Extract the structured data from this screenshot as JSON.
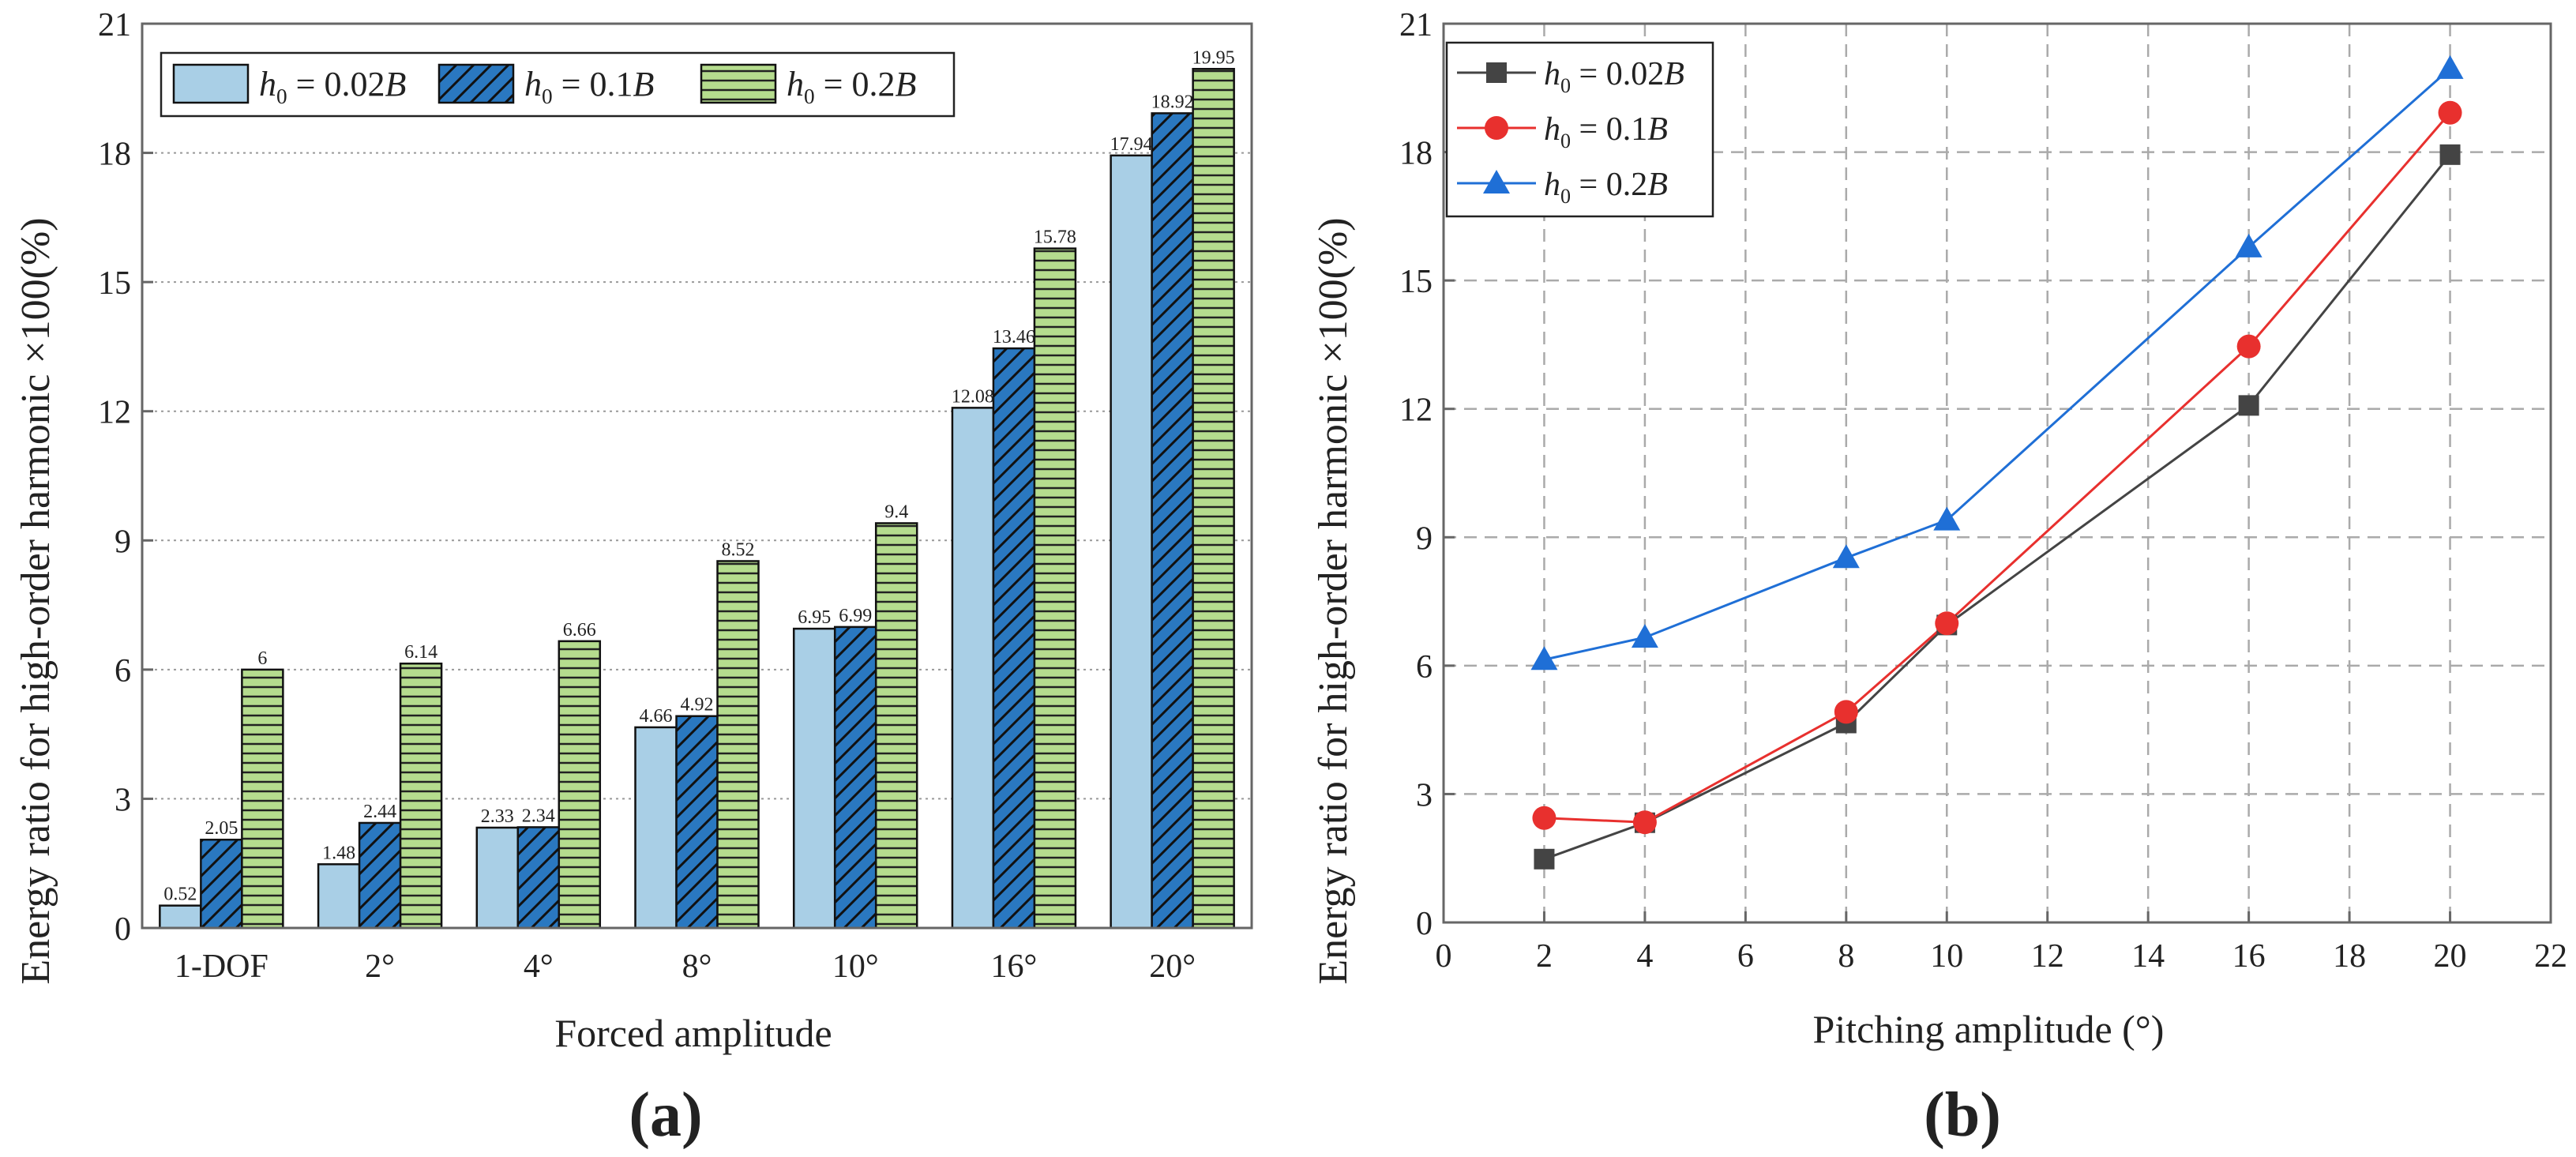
{
  "chart_data": [
    {
      "type": "bar",
      "panel_label": "(a)",
      "title": "",
      "xlabel": "Forced amplitude",
      "ylabel": "Energy ratio for high-order harmonic ×100(%)",
      "ylim": [
        0,
        21
      ],
      "yticks": [
        "0",
        "3",
        "6",
        "9",
        "12",
        "15",
        "18",
        "21"
      ],
      "categories": [
        "1-DOF",
        "2°",
        "4°",
        "8°",
        "10°",
        "16°",
        "20°"
      ],
      "grid": "horizontal dotted",
      "legend_position": "top-left",
      "series": [
        {
          "name": "h0 = 0.02B",
          "legend_main": "h",
          "legend_sub": "0",
          "legend_rest": " = 0.02",
          "legend_italic": "B",
          "color": "#a9cfe6",
          "pattern": "solid",
          "values": [
            0.52,
            1.48,
            2.33,
            4.66,
            6.95,
            12.08,
            17.94
          ],
          "labels": [
            "0.52",
            "1.48",
            "2.33",
            "4.66",
            "6.95",
            "12.08",
            "17.94"
          ]
        },
        {
          "name": "h0 = 0.1B",
          "legend_main": "h",
          "legend_sub": "0",
          "legend_rest": " = 0.1",
          "legend_italic": "B",
          "color": "#2a78c0",
          "pattern": "hatch",
          "values": [
            2.05,
            2.44,
            2.34,
            4.92,
            6.99,
            13.46,
            18.92
          ],
          "labels": [
            "2.05",
            "2.44",
            "2.34",
            "4.92",
            "6.99",
            "13.46",
            "18.92"
          ]
        },
        {
          "name": "h0 = 0.2B",
          "legend_main": "h",
          "legend_sub": "0",
          "legend_rest": " = 0.2",
          "legend_italic": "B",
          "color": "#b5dc8e",
          "pattern": "stripes",
          "values": [
            6,
            6.14,
            6.66,
            8.52,
            9.4,
            15.78,
            19.95
          ],
          "labels": [
            "6",
            "6.14",
            "6.66",
            "8.52",
            "9.4",
            "15.78",
            "19.95"
          ]
        }
      ]
    },
    {
      "type": "line",
      "panel_label": "(b)",
      "title": "",
      "xlabel": "Pitching amplitude (°)",
      "ylabel": "Energy ratio for high-order harmonic ×100(%)",
      "xlim": [
        0,
        22
      ],
      "ylim": [
        0,
        21
      ],
      "xticks": [
        "0",
        "2",
        "4",
        "6",
        "8",
        "10",
        "12",
        "14",
        "16",
        "18",
        "20",
        "22"
      ],
      "yticks": [
        "0",
        "3",
        "6",
        "9",
        "12",
        "15",
        "18",
        "21"
      ],
      "grid": "dashed",
      "legend_position": "top-left",
      "x": [
        2,
        4,
        8,
        10,
        16,
        20
      ],
      "series": [
        {
          "name": "h0 = 0.02B",
          "legend_main": "h",
          "legend_sub": "0",
          "legend_rest": " = 0.02",
          "legend_italic": "B",
          "color": "#444444",
          "marker": "square",
          "values": [
            1.48,
            2.33,
            4.66,
            6.95,
            12.08,
            17.94
          ]
        },
        {
          "name": "h0 = 0.1B",
          "legend_main": "h",
          "legend_sub": "0",
          "legend_rest": " = 0.1",
          "legend_italic": "B",
          "color": "#e8302e",
          "marker": "circle",
          "values": [
            2.44,
            2.34,
            4.92,
            6.99,
            13.46,
            18.92
          ]
        },
        {
          "name": "h0 = 0.2B",
          "legend_main": "h",
          "legend_sub": "0",
          "legend_rest": " = 0.2",
          "legend_italic": "B",
          "color": "#1f6fd6",
          "marker": "triangle",
          "values": [
            6.14,
            6.66,
            8.52,
            9.4,
            15.78,
            19.95
          ]
        }
      ]
    }
  ]
}
